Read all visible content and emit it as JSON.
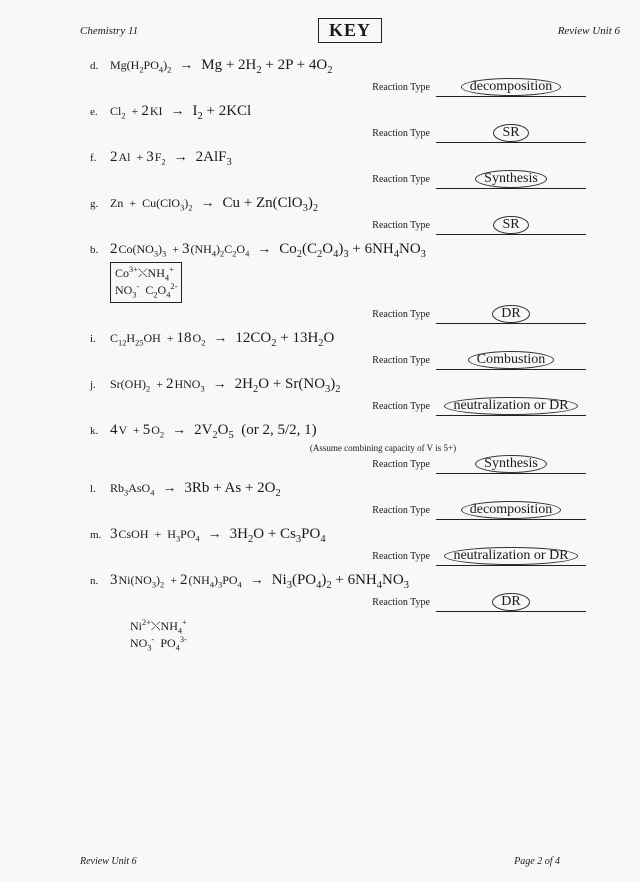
{
  "header": {
    "left": "Chemistry 11",
    "center": "KEY",
    "right": "Review Unit 6"
  },
  "footer": {
    "left": "Review Unit 6",
    "right": "Page 2 of 4"
  },
  "rt_label": "Reaction Type",
  "note_k": "(Assume combining capacity of V is 5+)",
  "problems": [
    {
      "letter": "d.",
      "reactants_html": "Mg(H<sub>2</sub>PO<sub>4</sub>)<sub>2</sub>",
      "products_hw": "Mg + 2H<sub>2</sub> + 2P + 4O<sub>2</sub>",
      "rt": "decomposition",
      "circled": true
    },
    {
      "letter": "e.",
      "reactants_html": "Cl<sub>2</sub> &nbsp;+ <span class='coef'>2</span>KI",
      "products_hw": "I<sub>2</sub> + 2KCl",
      "rt": "SR",
      "circled": true
    },
    {
      "letter": "f.",
      "reactants_html": "<span class='coef'>2</span>Al &nbsp;+ <span class='coef'>3</span>F<sub>2</sub>",
      "products_hw": "2AlF<sub>3</sub>",
      "rt": "Synthesis",
      "circled": true
    },
    {
      "letter": "g.",
      "reactants_html": "Zn &nbsp;+&nbsp; Cu(ClO<sub>3</sub>)<sub>2</sub>",
      "products_hw": "Cu + Zn(ClO<sub>3</sub>)<sub>2</sub>",
      "rt": "SR",
      "circled": true
    },
    {
      "letter": "b.",
      "reactants_html": "<span class='coef'>2</span>Co(NO<sub>3</sub>)<sub>3</sub> &nbsp;+ <span class='coef'>3</span>(NH<sub>4</sub>)<sub>2</sub>C<sub>2</sub>O<sub>4</sub>",
      "products_hw": "Co<sub>2</sub>(C<sub>2</sub>O<sub>4</sub>)<sub>3</sub> + 6NH<sub>4</sub>NO<sub>3</sub>",
      "rt": "DR",
      "circled": true,
      "ionbox": "Co<sup>3+</sup>⤬NH<sub>4</sub><sup>+</sup><br>NO<sub>3</sub><sup>-</sup>&nbsp;&nbsp;C<sub>2</sub>O<sub>4</sub><sup>2-</sup>"
    },
    {
      "letter": "i.",
      "reactants_html": "C<sub>12</sub>H<sub>25</sub>OH &nbsp;+ <span class='coef'>18</span>O<sub>2</sub>",
      "products_hw": "12CO<sub>2</sub> + 13H<sub>2</sub>O",
      "rt": "Combustion",
      "circled": true
    },
    {
      "letter": "j.",
      "reactants_html": "Sr(OH)<sub>2</sub> &nbsp;+ <span class='coef'>2</span>HNO<sub>3</sub>",
      "products_hw": "2H<sub>2</sub>O + Sr(NO<sub>3</sub>)<sub>2</sub>",
      "rt": "neutralization or DR",
      "circled": true
    },
    {
      "letter": "k.",
      "reactants_html": "<span class='coef'>4</span>V &nbsp;+ <span class='coef'>5</span>O<sub>2</sub>",
      "products_hw": "2V<sub>2</sub>O<sub>5</sub> &nbsp;(or 2, 5/2, 1)",
      "rt": "Synthesis",
      "circled": true,
      "note": true
    },
    {
      "letter": "l.",
      "reactants_html": "Rb<sub>3</sub>AsO<sub>4</sub>",
      "products_hw": "3Rb + As + 2O<sub>2</sub>",
      "rt": "decomposition",
      "circled": true
    },
    {
      "letter": "m.",
      "reactants_html": "<span class='coef'>3</span>CsOH &nbsp;+&nbsp; H<sub>3</sub>PO<sub>4</sub>",
      "products_hw": "3H<sub>2</sub>O + Cs<sub>3</sub>PO<sub>4</sub>",
      "rt": "neutralization or DR",
      "circled": true
    },
    {
      "letter": "n.",
      "reactants_html": "<span class='coef'>3</span>Ni(NO<sub>3</sub>)<sub>2</sub> &nbsp;+ <span class='coef'>2</span>(NH<sub>4</sub>)<sub>3</sub>PO<sub>4</sub>",
      "products_hw": "Ni<sub>3</sub>(PO<sub>4</sub>)<sub>2</sub> + 6NH<sub>4</sub>NO<sub>3</sub>",
      "rt": "DR",
      "circled": true,
      "ionbox2": "Ni<sup>2+</sup>⤬NH<sub>4</sub><sup>+</sup><br>NO<sub>3</sub><sup>-</sup>&nbsp;&nbsp;PO<sub>4</sub><sup>3-</sup>"
    }
  ]
}
